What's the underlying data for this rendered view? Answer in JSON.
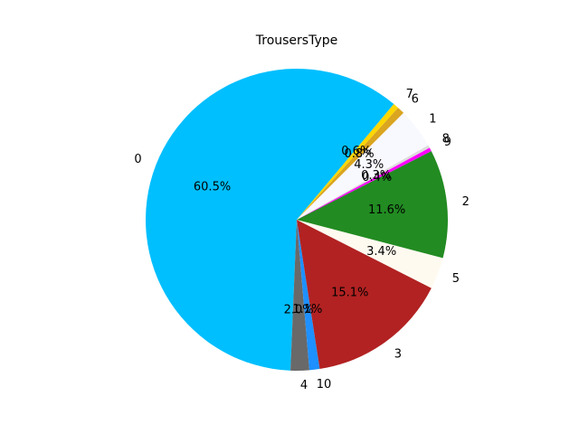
{
  "chart_data": {
    "type": "pie",
    "title": "TrousersType",
    "start_angle_deg": 45,
    "direction": "counterclockwise",
    "slices": [
      {
        "label": "6",
        "value": 0.8,
        "pct_text": "0.8%",
        "color": "#DAA520"
      },
      {
        "label": "7",
        "value": 0.6,
        "pct_text": "0.6%",
        "color": "#FFD700"
      },
      {
        "label": "0",
        "value": 60.5,
        "pct_text": "60.5%",
        "color": "#00BFFF"
      },
      {
        "label": "4",
        "value": 2.0,
        "pct_text": "2.0%",
        "color": "#696969"
      },
      {
        "label": "10",
        "value": 1.1,
        "pct_text": "1.1%",
        "color": "#1E90FF"
      },
      {
        "label": "3",
        "value": 15.1,
        "pct_text": "15.1%",
        "color": "#B22222"
      },
      {
        "label": "5",
        "value": 3.4,
        "pct_text": "3.4%",
        "color": "#FFFAF0"
      },
      {
        "label": "2",
        "value": 11.6,
        "pct_text": "11.6%",
        "color": "#228B22"
      },
      {
        "label": "9",
        "value": 0.4,
        "pct_text": "0.4%",
        "color": "#FF00FF"
      },
      {
        "label": "8",
        "value": 0.3,
        "pct_text": "0.3%",
        "color": "#DCDCDC"
      },
      {
        "label": "1",
        "value": 4.3,
        "pct_text": "4.3%",
        "color": "#F8F8FF"
      }
    ]
  }
}
